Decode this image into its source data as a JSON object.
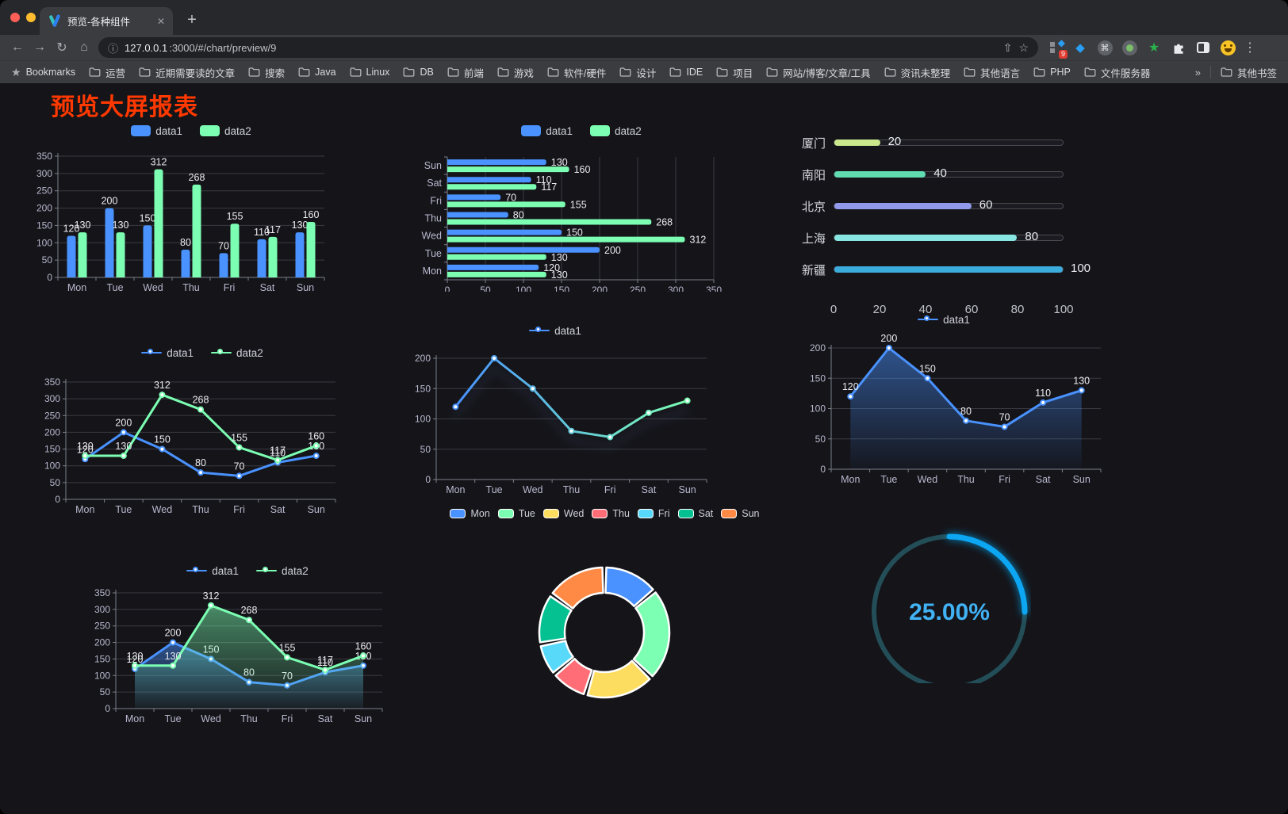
{
  "browser": {
    "traffic_lights": [
      "#ff5f57",
      "#febc2e",
      "#28c840"
    ],
    "tab": {
      "title": "预览-各种组件"
    },
    "icons": {
      "close": "✕",
      "new_tab": "+",
      "back": "←",
      "forward": "→",
      "reload": "↻",
      "home": "⌂",
      "info": "ⓘ",
      "share": "⇧",
      "star": "☆",
      "menu": "⋮",
      "cmd": "⌘",
      "diamond": "◆",
      "green_star": "★",
      "bookmarks_star": "★",
      "overflow": "»"
    },
    "url": {
      "host": "127.0.0.1",
      "rest": ":3000/#/chart/preview/9"
    },
    "extensions": {
      "badge": "9"
    },
    "bookmarks": {
      "label": "Bookmarks",
      "folders": [
        "运营",
        "近期需要读的文章",
        "搜索",
        "Java",
        "Linux",
        "DB",
        "前端",
        "游戏",
        "软件/硬件",
        "设计",
        "IDE",
        "项目",
        "网站/博客/文章/工具",
        "资讯未整理",
        "其他语言",
        "PHP",
        "文件服务器"
      ],
      "overflow": "»",
      "other_bookmarks": "其他书签"
    }
  },
  "page": {
    "title": "预览大屏报表",
    "title_color": "#ff3900",
    "background": "#141419"
  },
  "chart_data": [
    {
      "id": "bar-grouped",
      "type": "bar",
      "categories": [
        "Mon",
        "Tue",
        "Wed",
        "Thu",
        "Fri",
        "Sat",
        "Sun"
      ],
      "series": [
        {
          "name": "data1",
          "color": "#4992ff",
          "values": [
            120,
            200,
            150,
            80,
            70,
            110,
            130
          ]
        },
        {
          "name": "data2",
          "color": "#7cffb2",
          "values": [
            130,
            130,
            312,
            268,
            155,
            117,
            160
          ]
        }
      ],
      "ylim": [
        0,
        350
      ],
      "ytick": 50,
      "grid": true,
      "legend_position": "top"
    },
    {
      "id": "bar-horizontal",
      "type": "bar-horizontal",
      "categories": [
        "Mon",
        "Tue",
        "Wed",
        "Thu",
        "Fri",
        "Sat",
        "Sun"
      ],
      "series": [
        {
          "name": "data1",
          "color": "#4992ff",
          "values": [
            120,
            200,
            150,
            80,
            70,
            110,
            130
          ]
        },
        {
          "name": "data2",
          "color": "#7cffb2",
          "values": [
            130,
            130,
            312,
            268,
            155,
            117,
            160
          ]
        }
      ],
      "xlim": [
        0,
        350
      ],
      "xtick": 50,
      "grid": true,
      "legend_position": "top"
    },
    {
      "id": "progress",
      "type": "progress",
      "max": 100,
      "axis_ticks": [
        0,
        20,
        40,
        60,
        80,
        100
      ],
      "items": [
        {
          "label": "厦门",
          "value": 20,
          "color": "#cbe98c"
        },
        {
          "label": "南阳",
          "value": 40,
          "color": "#5fdcb0"
        },
        {
          "label": "北京",
          "value": 60,
          "color": "#9199ea"
        },
        {
          "label": "上海",
          "value": 80,
          "color": "#87e6e2"
        },
        {
          "label": "新疆",
          "value": 100,
          "color": "#3cacdd"
        }
      ]
    },
    {
      "id": "line-two",
      "type": "line",
      "categories": [
        "Mon",
        "Tue",
        "Wed",
        "Thu",
        "Fri",
        "Sat",
        "Sun"
      ],
      "series": [
        {
          "name": "data1",
          "color": "#4992ff",
          "values": [
            120,
            200,
            150,
            80,
            70,
            110,
            130
          ]
        },
        {
          "name": "data2",
          "color": "#7cffb2",
          "values": [
            130,
            130,
            312,
            268,
            155,
            117,
            160
          ]
        }
      ],
      "ylim": [
        0,
        350
      ],
      "ytick": 50,
      "show_labels": true,
      "legend_position": "top"
    },
    {
      "id": "line-gradient",
      "type": "line",
      "categories": [
        "Mon",
        "Tue",
        "Wed",
        "Thu",
        "Fri",
        "Sat",
        "Sun"
      ],
      "series": [
        {
          "name": "data1",
          "color": "#4992ff",
          "color_gradient": [
            "#4992ff",
            "#7cffb2"
          ],
          "values": [
            120,
            200,
            150,
            80,
            70,
            110,
            130
          ]
        }
      ],
      "ylim": [
        0,
        200
      ],
      "ytick": 50,
      "show_labels": false,
      "shadow": true,
      "legend_position": "top"
    },
    {
      "id": "line-area",
      "type": "line",
      "categories": [
        "Mon",
        "Tue",
        "Wed",
        "Thu",
        "Fri",
        "Sat",
        "Sun"
      ],
      "series": [
        {
          "name": "data1",
          "color": "#4992ff",
          "area": true,
          "values": [
            120,
            200,
            150,
            80,
            70,
            110,
            130
          ]
        }
      ],
      "ylim": [
        0,
        200
      ],
      "ytick": 50,
      "show_labels": true,
      "legend_position": "top"
    },
    {
      "id": "line-area-two",
      "type": "line",
      "categories": [
        "Mon",
        "Tue",
        "Wed",
        "Thu",
        "Fri",
        "Sat",
        "Sun"
      ],
      "series": [
        {
          "name": "data1",
          "color": "#4992ff",
          "area": true,
          "values": [
            120,
            200,
            150,
            80,
            70,
            110,
            130
          ]
        },
        {
          "name": "data2",
          "color": "#7cffb2",
          "area": true,
          "values": [
            130,
            130,
            312,
            268,
            155,
            117,
            160
          ]
        }
      ],
      "ylim": [
        0,
        350
      ],
      "ytick": 50,
      "show_labels": true,
      "legend_position": "top"
    },
    {
      "id": "donut",
      "type": "pie",
      "categories": [
        "Mon",
        "Tue",
        "Wed",
        "Thu",
        "Fri",
        "Sat",
        "Sun"
      ],
      "values": [
        120,
        200,
        150,
        80,
        70,
        110,
        130
      ],
      "colors": [
        "#4992ff",
        "#7cffb2",
        "#fddd60",
        "#ff6e76",
        "#58d9f9",
        "#05c091",
        "#ff8a45"
      ],
      "legend_position": "top"
    },
    {
      "id": "gauge",
      "type": "gauge",
      "value": 25,
      "display": "25.00%",
      "color": "#0da6f2",
      "track_color": "#234e58",
      "text_color": "#41b2f3"
    }
  ]
}
